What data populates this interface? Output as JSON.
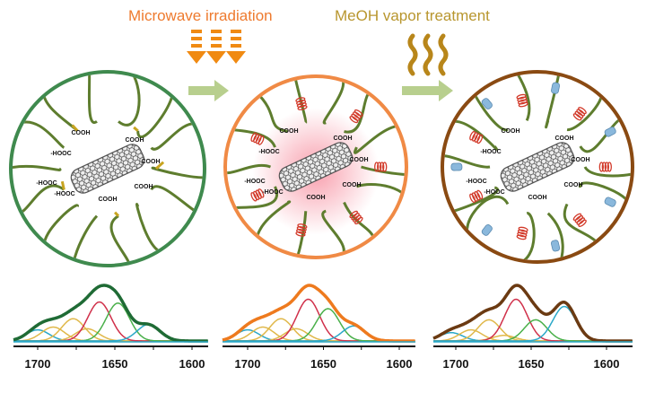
{
  "labels": {
    "microwave": "Microwave irradiation",
    "methanol": "MeOH vapor treatment"
  },
  "colors": {
    "microwave_text": "#ee7a2e",
    "methanol_text": "#b8962e",
    "arrow_orange": "#f08a12",
    "wave_gold": "#b8861a",
    "process_arrow": "#b8cf8e",
    "circle_1": "#3f8a4e",
    "circle_2": "#f08a45",
    "circle_3": "#8a4a12",
    "chain": "#5e7d2e",
    "helix_red": "#d23a2a",
    "sheet_blue": "#8ab8dc",
    "cnt": "#555555"
  },
  "circles": [
    {
      "state": "pristine",
      "groups": [
        "-HOOC",
        "COOH",
        "-HOOC",
        "COOH",
        "COOH",
        "-HOOC",
        "COOH",
        "COOH"
      ]
    },
    {
      "state": "microwave",
      "groups": [
        "-HOOC",
        "COOH",
        "-HOOC",
        "COOH",
        "COOH",
        "-HOOC",
        "COOH",
        "COOH"
      ]
    },
    {
      "state": "methanol",
      "groups": [
        "-HOOC",
        "COOH",
        "-HOOC",
        "COOH",
        "COOH",
        "-HOOC",
        "COOH",
        "COOH"
      ]
    }
  ],
  "chart_data": [
    {
      "type": "line",
      "xlim": [
        1715,
        1595
      ],
      "ticks": [
        "1700",
        "1650",
        "1600"
      ],
      "envelope_color": "#1f6b35",
      "components": [
        {
          "center": 1700,
          "amp": 0.2,
          "color": "#2aa8c8"
        },
        {
          "center": 1690,
          "amp": 0.25,
          "color": "#e0b84a"
        },
        {
          "center": 1677,
          "amp": 0.4,
          "color": "#e0b84a"
        },
        {
          "center": 1668,
          "amp": 0.22,
          "color": "#e0b84a"
        },
        {
          "center": 1660,
          "amp": 0.7,
          "color": "#d0304a"
        },
        {
          "center": 1648,
          "amp": 0.68,
          "color": "#4ab04a"
        },
        {
          "center": 1628,
          "amp": 0.3,
          "color": "#2aa8c8"
        }
      ]
    },
    {
      "type": "line",
      "xlim": [
        1715,
        1595
      ],
      "ticks": [
        "1700",
        "1650",
        "1600"
      ],
      "envelope_color": "#ee7a1e",
      "components": [
        {
          "center": 1700,
          "amp": 0.2,
          "color": "#2aa8c8"
        },
        {
          "center": 1690,
          "amp": 0.25,
          "color": "#e0b84a"
        },
        {
          "center": 1678,
          "amp": 0.4,
          "color": "#e0b84a"
        },
        {
          "center": 1668,
          "amp": 0.22,
          "color": "#e0b84a"
        },
        {
          "center": 1660,
          "amp": 0.75,
          "color": "#d0304a"
        },
        {
          "center": 1647,
          "amp": 0.58,
          "color": "#4ab04a"
        },
        {
          "center": 1630,
          "amp": 0.27,
          "color": "#2aa8c8"
        }
      ]
    },
    {
      "type": "line",
      "xlim": [
        1715,
        1595
      ],
      "ticks": [
        "1700",
        "1650",
        "1600"
      ],
      "envelope_color": "#6b3a12",
      "components": [
        {
          "center": 1703,
          "amp": 0.15,
          "color": "#2aa8c8"
        },
        {
          "center": 1690,
          "amp": 0.2,
          "color": "#e0b84a"
        },
        {
          "center": 1678,
          "amp": 0.38,
          "color": "#e0b84a"
        },
        {
          "center": 1668,
          "amp": 0.1,
          "color": "#e0b84a"
        },
        {
          "center": 1660,
          "amp": 0.75,
          "color": "#d0304a"
        },
        {
          "center": 1647,
          "amp": 0.38,
          "color": "#4ab04a"
        },
        {
          "center": 1628,
          "amp": 0.62,
          "color": "#2aa8c8"
        }
      ]
    }
  ]
}
